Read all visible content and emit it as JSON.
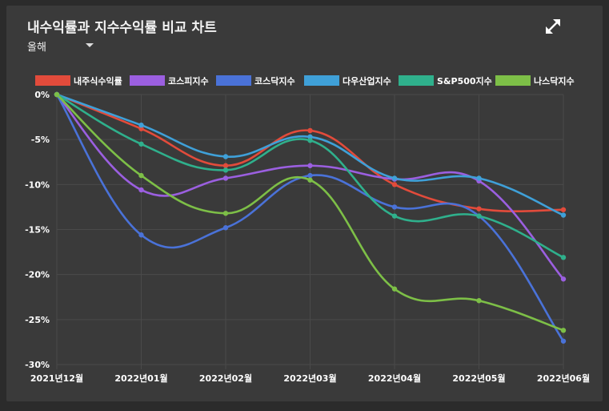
{
  "header": {
    "title": "내수익률과 지수수익률 비교 차트",
    "period_label": "올해",
    "expand_icon": "expand-icon"
  },
  "colors": {
    "card_bg": "#3a3a3a",
    "grid": "#4a4a4a",
    "axis_text": "#ffffff"
  },
  "chart_data": {
    "type": "line",
    "title": "내수익률과 지수수익률 비교 차트",
    "categories": [
      "2021년12월",
      "2022년01월",
      "2022년02월",
      "2022년03월",
      "2022년04월",
      "2022년05월",
      "2022년06월"
    ],
    "ylim": [
      -30,
      0
    ],
    "yticks": [
      0,
      -5,
      -10,
      -15,
      -20,
      -25,
      -30
    ],
    "ytick_labels": [
      "0%",
      "-5%",
      "-10%",
      "-15%",
      "-20%",
      "-25%",
      "-30%"
    ],
    "grid": true,
    "legend_position": "top",
    "series": [
      {
        "name": "내주식수익률",
        "color": "#e24b3b",
        "values": [
          0,
          -3.8,
          -7.9,
          -4.0,
          -10.0,
          -12.7,
          -12.8
        ]
      },
      {
        "name": "코스피지수",
        "color": "#9b5fe0",
        "values": [
          0,
          -10.6,
          -9.3,
          -7.9,
          -9.4,
          -9.6,
          -20.5
        ]
      },
      {
        "name": "코스닥지수",
        "color": "#4a72d8",
        "values": [
          0,
          -15.6,
          -14.8,
          -9.0,
          -12.5,
          -13.5,
          -27.4
        ]
      },
      {
        "name": "다우산업지수",
        "color": "#3fa0d8",
        "values": [
          0,
          -3.4,
          -6.9,
          -4.7,
          -9.3,
          -9.3,
          -13.4
        ]
      },
      {
        "name": "S&P500지수",
        "color": "#2fb08c",
        "values": [
          0,
          -5.5,
          -8.4,
          -5.1,
          -13.5,
          -13.5,
          -18.1
        ]
      },
      {
        "name": "나스닥지수",
        "color": "#7dbf47",
        "values": [
          0,
          -9.0,
          -13.2,
          -9.5,
          -21.6,
          -22.9,
          -26.2
        ]
      }
    ]
  }
}
